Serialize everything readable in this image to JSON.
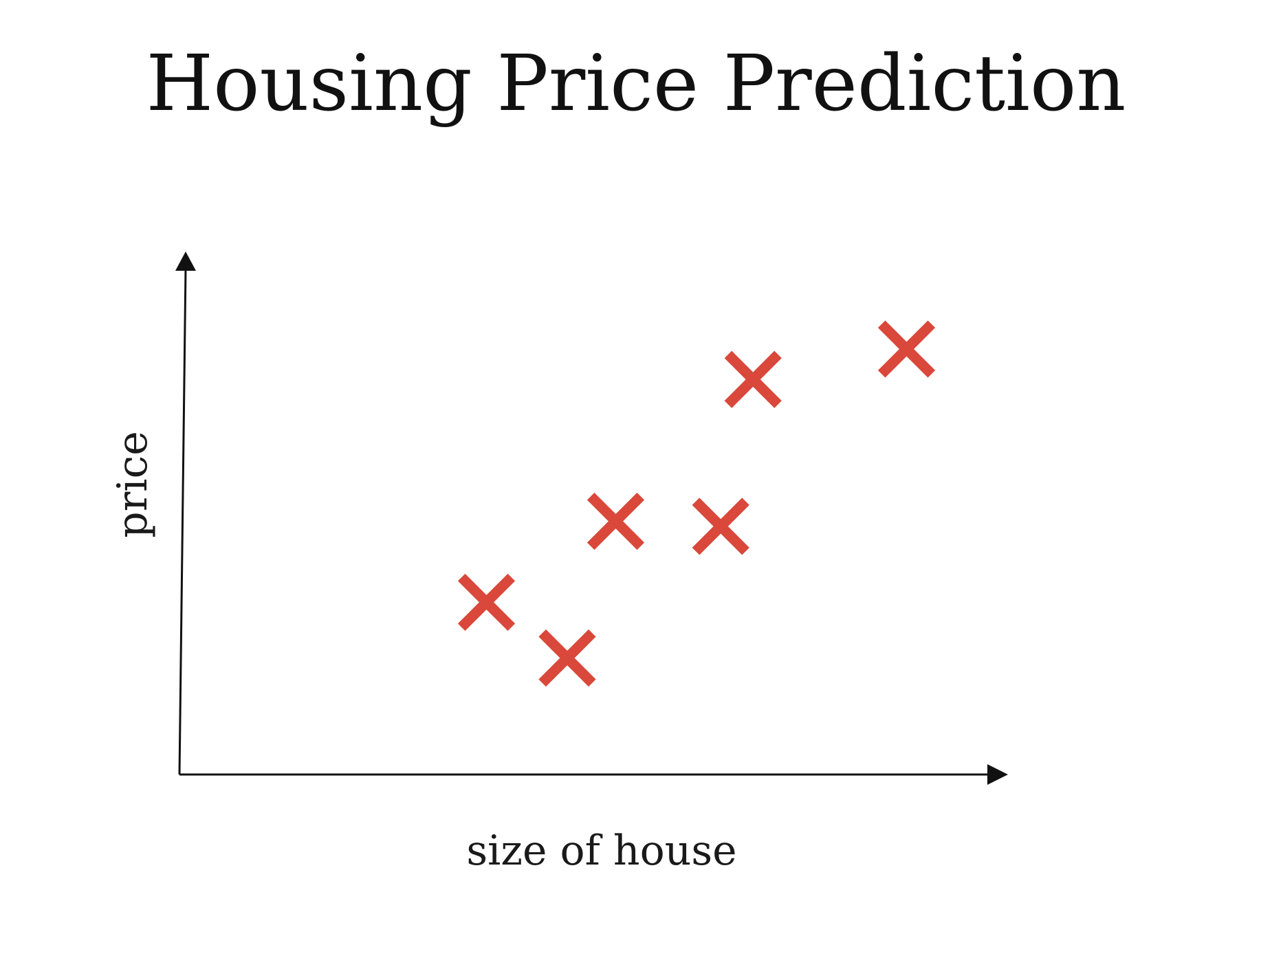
{
  "chart_data": {
    "type": "scatter",
    "title": "Housing Price Prediction",
    "xlabel": "size of house",
    "ylabel": "price",
    "grid": false,
    "legend": "none",
    "marker": "x",
    "marker_color": "#d9483b",
    "axis_color": "#111111",
    "xlim": [
      0,
      10
    ],
    "ylim": [
      0,
      10
    ],
    "points": [
      {
        "x": 3.8,
        "y": 3.4
      },
      {
        "x": 4.8,
        "y": 2.3
      },
      {
        "x": 5.4,
        "y": 5.0
      },
      {
        "x": 6.7,
        "y": 4.9
      },
      {
        "x": 7.1,
        "y": 7.8
      },
      {
        "x": 9.0,
        "y": 8.4
      }
    ]
  }
}
